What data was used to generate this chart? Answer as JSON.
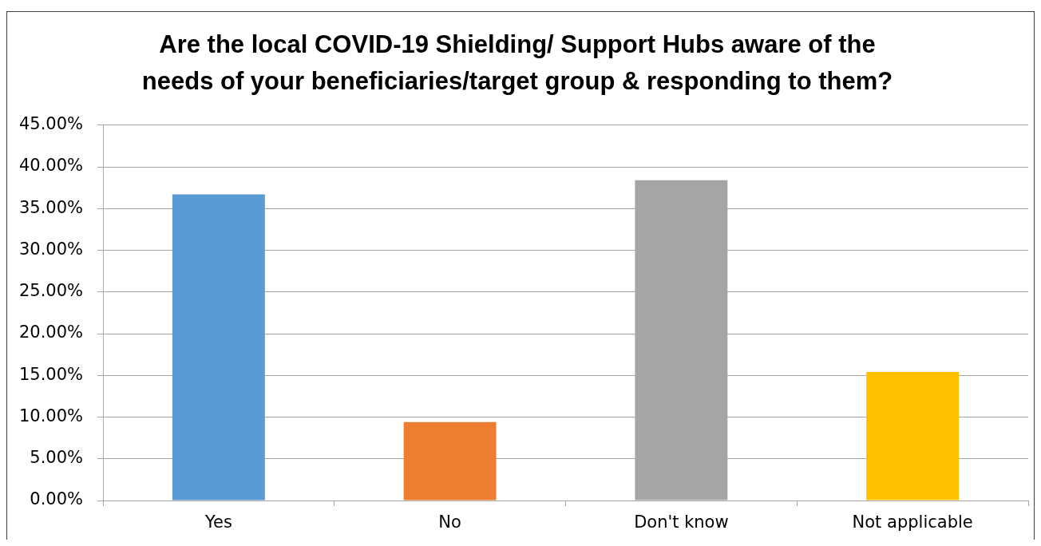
{
  "chart_data": {
    "type": "bar",
    "title": "Are the local COVID-19 Shielding/ Support Hubs aware of the needs of your beneficiaries/target group & responding to them?",
    "categories": [
      "Yes",
      "No",
      "Don't know",
      "Not applicable"
    ],
    "values": [
      36.7,
      9.4,
      38.4,
      15.4
    ],
    "colors": [
      "#5b9bd5",
      "#ed7d31",
      "#a5a5a5",
      "#ffc000"
    ],
    "ylim": [
      0,
      45
    ],
    "yticks": [
      {
        "value": 0,
        "label": "0.00%"
      },
      {
        "value": 5,
        "label": "5.00%"
      },
      {
        "value": 10,
        "label": "10.00%"
      },
      {
        "value": 15,
        "label": "15.00%"
      },
      {
        "value": 20,
        "label": "20.00%"
      },
      {
        "value": 25,
        "label": "25.00%"
      },
      {
        "value": 30,
        "label": "30.00%"
      },
      {
        "value": 35,
        "label": "35.00%"
      },
      {
        "value": 40,
        "label": "40.00%"
      },
      {
        "value": 45,
        "label": "45.00%"
      }
    ],
    "grid": "y"
  }
}
